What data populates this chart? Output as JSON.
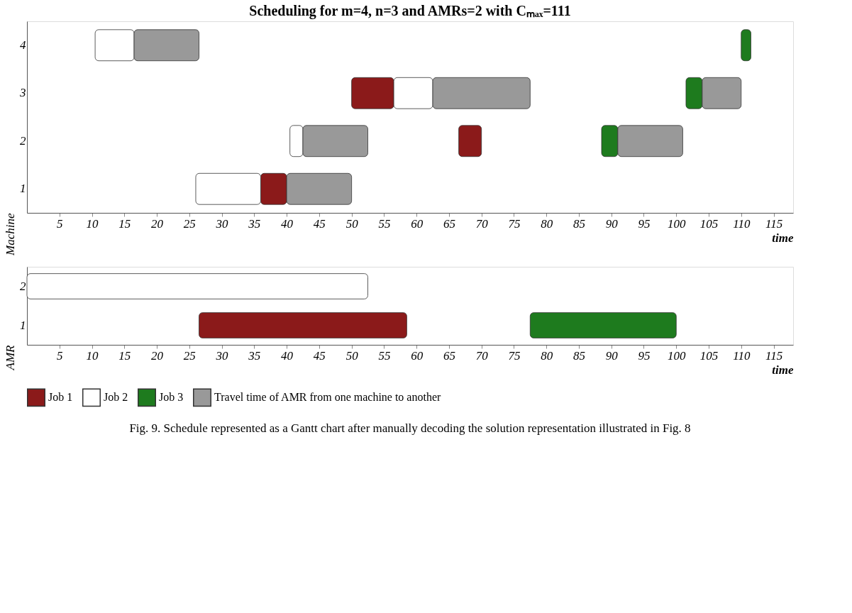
{
  "chart_data": [
    {
      "type": "bar",
      "orientation": "horizontal",
      "title": "Scheduling for m=4, n=3 and AMRs=2 with Cₘₐₓ=111",
      "xlabel": "time",
      "ylabel": "Machine",
      "categories": [
        "4",
        "3",
        "2",
        "1"
      ],
      "xlim": [
        0,
        118
      ],
      "xticks": [
        5,
        10,
        15,
        20,
        25,
        30,
        35,
        40,
        45,
        50,
        55,
        60,
        65,
        70,
        75,
        80,
        85,
        90,
        95,
        100,
        105,
        110,
        115
      ],
      "grid": false,
      "legend": false,
      "series": [
        {
          "color": "#8b1a1a",
          "base": [
            null,
            50,
            66.5,
            36
          ],
          "values": [
            null,
            6.5,
            3.5,
            4
          ]
        },
        {
          "color": "#ffffff",
          "base": [
            10.5,
            56.5,
            40.5,
            26
          ],
          "values": [
            6,
            6,
            2,
            10
          ]
        },
        {
          "color": "#1e7b1e",
          "base": [
            110,
            101.5,
            88.5,
            null
          ],
          "values": [
            1.5,
            2.5,
            2.5,
            null
          ]
        },
        {
          "color": "#999999",
          "base": [
            16.5,
            62.5,
            42.5,
            40
          ],
          "values": [
            10,
            15,
            10,
            10
          ]
        },
        {
          "color": "#999999",
          "base": [
            null,
            104,
            91,
            null
          ],
          "values": [
            null,
            6,
            10,
            null
          ]
        }
      ]
    },
    {
      "type": "bar",
      "orientation": "horizontal",
      "xlabel": "time",
      "ylabel": "AMR",
      "categories": [
        "2",
        "1"
      ],
      "xlim": [
        0,
        118
      ],
      "xticks": [
        5,
        10,
        15,
        20,
        25,
        30,
        35,
        40,
        45,
        50,
        55,
        60,
        65,
        70,
        75,
        80,
        85,
        90,
        95,
        100,
        105,
        110,
        115
      ],
      "grid": false,
      "legend": "bottom",
      "annotations": [
        "Fig. 9. Schedule represented as a Gantt chart after manually decoding the solution representation illustrated in Fig. 8"
      ],
      "series": [
        {
          "name": "Job 1",
          "color": "#8b1a1a",
          "base": [
            null,
            26.5
          ],
          "values": [
            null,
            32
          ]
        },
        {
          "name": "Job 2",
          "color": "#ffffff",
          "base": [
            0,
            null
          ],
          "values": [
            52.5,
            null
          ]
        },
        {
          "name": "Job 3",
          "color": "#1e7b1e",
          "base": [
            null,
            77.5
          ],
          "values": [
            null,
            22.5
          ]
        },
        {
          "name": "Travel time of AMR from one machine to another",
          "color": "#999999",
          "base": [
            null,
            null
          ],
          "values": [
            null,
            null
          ]
        }
      ]
    }
  ]
}
